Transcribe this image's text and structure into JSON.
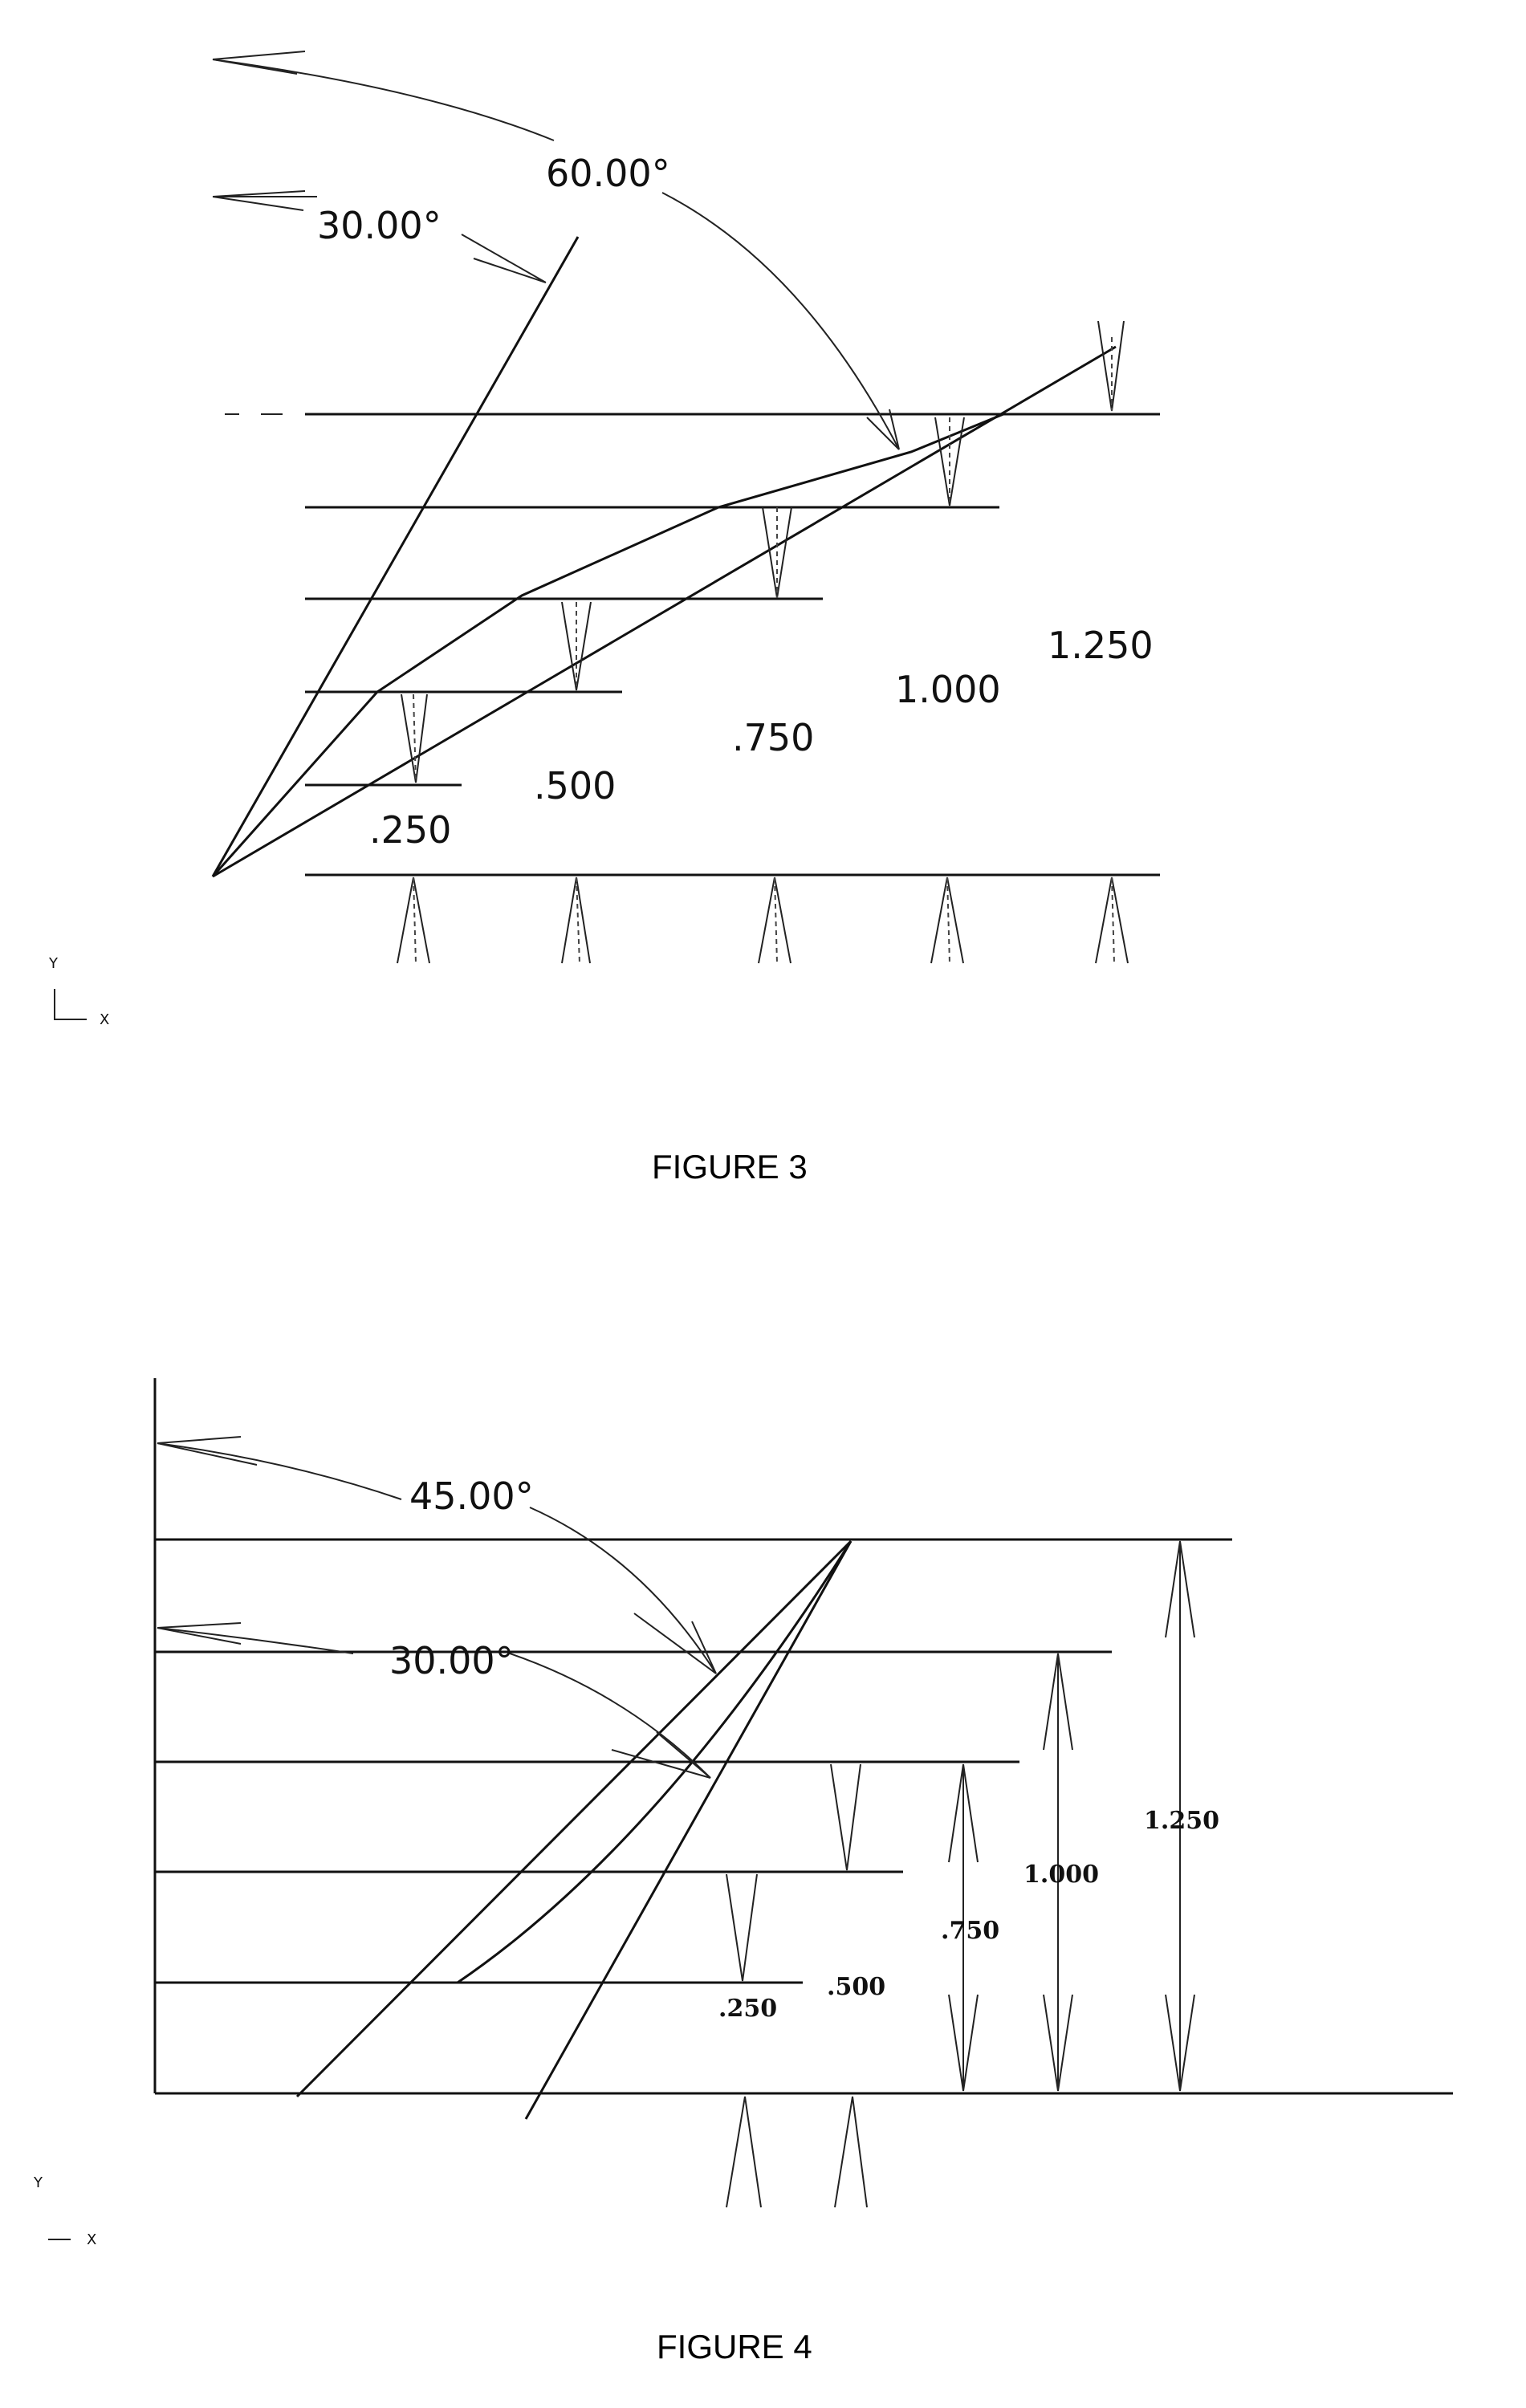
{
  "figure3": {
    "caption": "FIGURE 3",
    "angle_small": "30.00°",
    "angle_large": "60.00°",
    "labels": [
      ".250",
      ".500",
      ".750",
      "1.000",
      "1.250"
    ],
    "axis_y": "Y",
    "axis_x": "X"
  },
  "figure4": {
    "caption": "FIGURE 4",
    "angle_large": "45.00°",
    "angle_small": "30.00°",
    "labels": [
      ".250",
      ".500",
      ".750",
      "1.000",
      "1.250"
    ],
    "axis_y": "Y",
    "axis_x": "X"
  }
}
